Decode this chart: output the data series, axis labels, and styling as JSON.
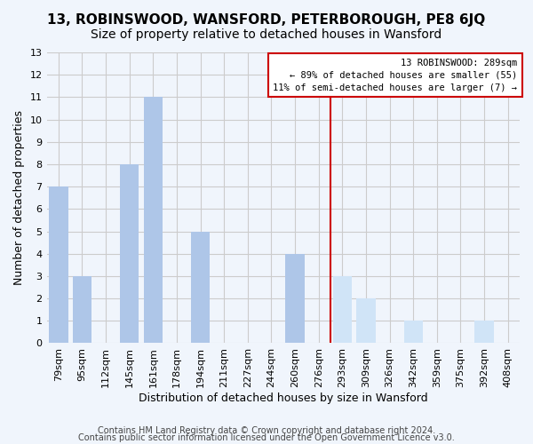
{
  "title1": "13, ROBINSWOOD, WANSFORD, PETERBOROUGH, PE8 6JQ",
  "title2": "Size of property relative to detached houses in Wansford",
  "xlabel": "Distribution of detached houses by size in Wansford",
  "ylabel": "Number of detached properties",
  "categories": [
    "79sqm",
    "95sqm",
    "112sqm",
    "145sqm",
    "161sqm",
    "178sqm",
    "194sqm",
    "211sqm",
    "227sqm",
    "244sqm",
    "260sqm",
    "276sqm",
    "293sqm",
    "309sqm",
    "326sqm",
    "342sqm",
    "359sqm",
    "375sqm",
    "392sqm",
    "408sqm"
  ],
  "values": [
    7,
    3,
    0,
    8,
    11,
    0,
    5,
    0,
    0,
    0,
    4,
    0,
    3,
    2,
    0,
    1,
    0,
    0,
    1,
    0
  ],
  "highlight_index": 11,
  "highlight_line_color": "#cc0000",
  "bar_color_left": "#aec6e8",
  "bar_color_highlight_right": "#d0e4f7",
  "annotation_box_text": "13 ROBINSWOOD: 289sqm\n← 89% of detached houses are smaller (55)\n11% of semi-detached houses are larger (7) →",
  "annotation_box_edge_color": "#cc0000",
  "annotation_box_bg": "#ffffff",
  "ylim": [
    0,
    13
  ],
  "yticks": [
    0,
    1,
    2,
    3,
    4,
    5,
    6,
    7,
    8,
    9,
    10,
    11,
    12,
    13
  ],
  "grid_color": "#cccccc",
  "footer1": "Contains HM Land Registry data © Crown copyright and database right 2024.",
  "footer2": "Contains public sector information licensed under the Open Government Licence v3.0.",
  "bg_color": "#f0f5fc",
  "title1_fontsize": 11,
  "title2_fontsize": 10,
  "xlabel_fontsize": 9,
  "ylabel_fontsize": 9,
  "tick_fontsize": 8,
  "footer_fontsize": 7
}
